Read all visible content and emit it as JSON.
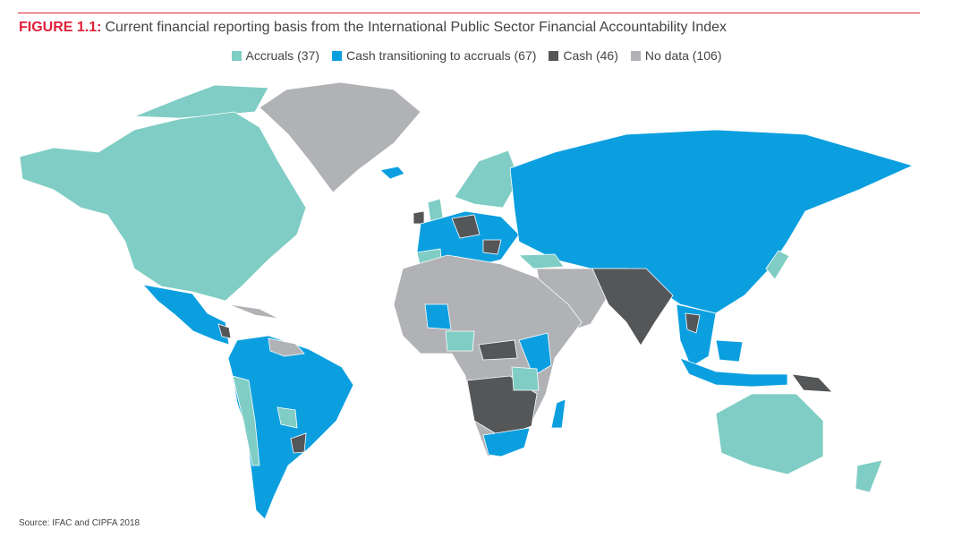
{
  "header": {
    "figure_label": "FIGURE 1.1:",
    "title": "Current financial reporting basis from the International Public Sector Financial Accountability Index"
  },
  "legend": [
    {
      "label": "Accruals (37)",
      "color": "#7fcdc4"
    },
    {
      "label": "Cash transitioning to accruals (67)",
      "color": "#0b9fe0"
    },
    {
      "label": "Cash (46)",
      "color": "#545658"
    },
    {
      "label": "No data (106)",
      "color": "#b0b2b5"
    }
  ],
  "source": "Source: IFAC and CIPFA 2018"
}
